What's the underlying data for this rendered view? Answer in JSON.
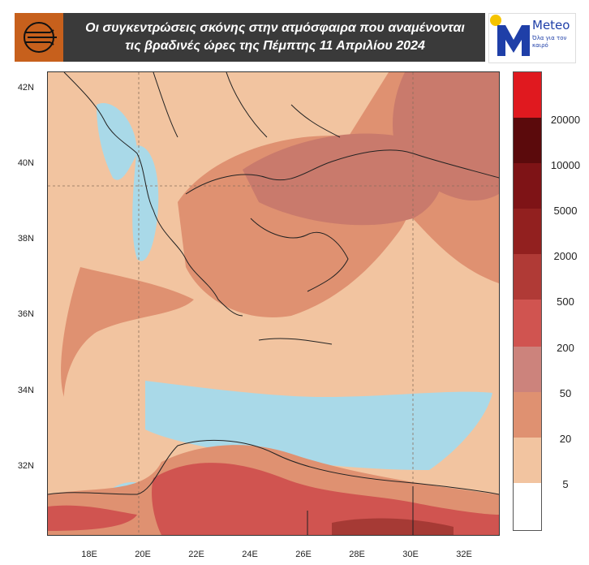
{
  "title_line1": "Οι συγκεντρώσεις σκόνης στην ατμόσφαιρα που αναμένονται",
  "title_line2": "τις βραδινές ώρες της Πέμπτης 11 Απριλίου 2024",
  "brand": {
    "name": "Meteo",
    "tagline": "Όλα για τον καιρό"
  },
  "lat_labels": [
    "42N",
    "40N",
    "38N",
    "36N",
    "34N",
    "32N"
  ],
  "lon_labels": [
    "18E",
    "20E",
    "22E",
    "24E",
    "26E",
    "28E",
    "30E",
    "32E"
  ],
  "legend": {
    "labels": [
      "20000",
      "10000",
      "5000",
      "2000",
      "500",
      "200",
      "50",
      "20",
      "5"
    ],
    "colors": [
      "#e0191f",
      "#5b0a0c",
      "#7e1316",
      "#92201f",
      "#b03a36",
      "#d05450",
      "#cc837c",
      "#df9171",
      "#f2c4a0",
      "#ffffff"
    ]
  },
  "colors": {
    "dust_low": "#f2c4a0",
    "dust_mid": "#df9171",
    "dust_high": "#c97a6c",
    "dust_red": "#d05450",
    "dust_dark": "#a63a35",
    "clean": "#a9d9e8",
    "coast": "#222222"
  }
}
